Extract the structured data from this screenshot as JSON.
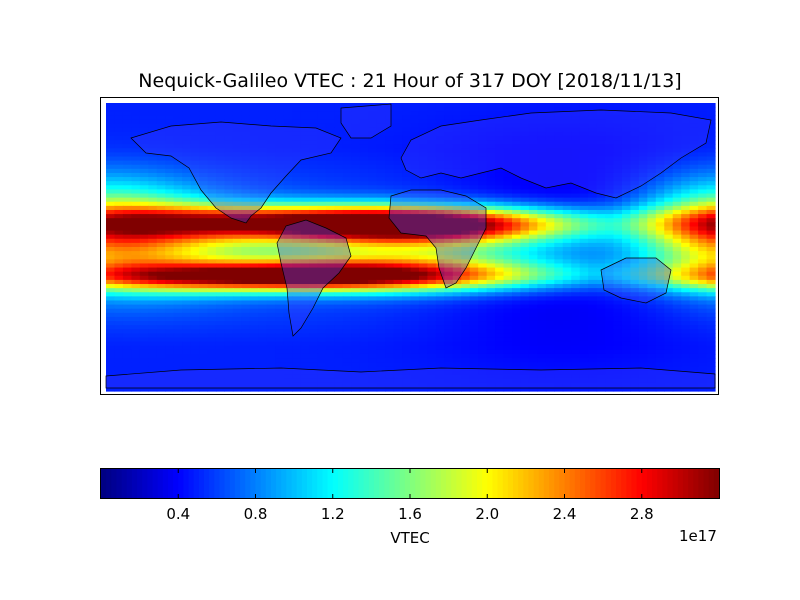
{
  "chart_data": {
    "type": "heatmap",
    "title": "Nequick-Galileo VTEC : 21 Hour of 317 DOY [2018/11/13]",
    "colorbar": {
      "label": "VTEC",
      "offset_text": "1e17",
      "range": [
        0.0,
        3.2
      ],
      "ticks": [
        {
          "value": 0.4,
          "label": "0.4"
        },
        {
          "value": 0.8,
          "label": "0.8"
        },
        {
          "value": 1.2,
          "label": "1.2"
        },
        {
          "value": 1.6,
          "label": "1.6"
        },
        {
          "value": 2.0,
          "label": "2.0"
        },
        {
          "value": 2.4,
          "label": "2.4"
        },
        {
          "value": 2.8,
          "label": "2.8"
        }
      ],
      "colormap": "jet"
    },
    "map": {
      "projection": "cylindrical",
      "lon_range": [
        -180,
        180
      ],
      "lat_range": [
        -87.5,
        87.5
      ],
      "resolution_deg": [
        5,
        2.5
      ],
      "overlay": "coastlines and country borders"
    },
    "features": {
      "background": 0.5,
      "crests": [
        {
          "lon_center": -60,
          "lat_center": 15,
          "peak": 2.7,
          "lon_width": 95,
          "lat_width": 7
        },
        {
          "lon_center": -70,
          "lat_center": -18,
          "peak": 3.1,
          "lon_width": 90,
          "lat_width": 6
        },
        {
          "lon_center": 10,
          "lat_center": 12,
          "peak": 2.3,
          "lon_width": 60,
          "lat_width": 8
        },
        {
          "lon_center": 0,
          "lat_center": -10,
          "peak": 1.6,
          "lon_width": 70,
          "lat_width": 10
        },
        {
          "lon_center": 175,
          "lat_center": 10,
          "peak": 1.4,
          "lon_width": 30,
          "lat_width": 20
        },
        {
          "lon_center": -150,
          "lat_center": 5,
          "peak": 1.5,
          "lon_width": 40,
          "lat_width": 20
        }
      ],
      "lows": [
        {
          "lon_center": 90,
          "lat_center": 0,
          "depth": 0.35,
          "lon_width": 60,
          "lat_width": 40
        }
      ]
    }
  }
}
